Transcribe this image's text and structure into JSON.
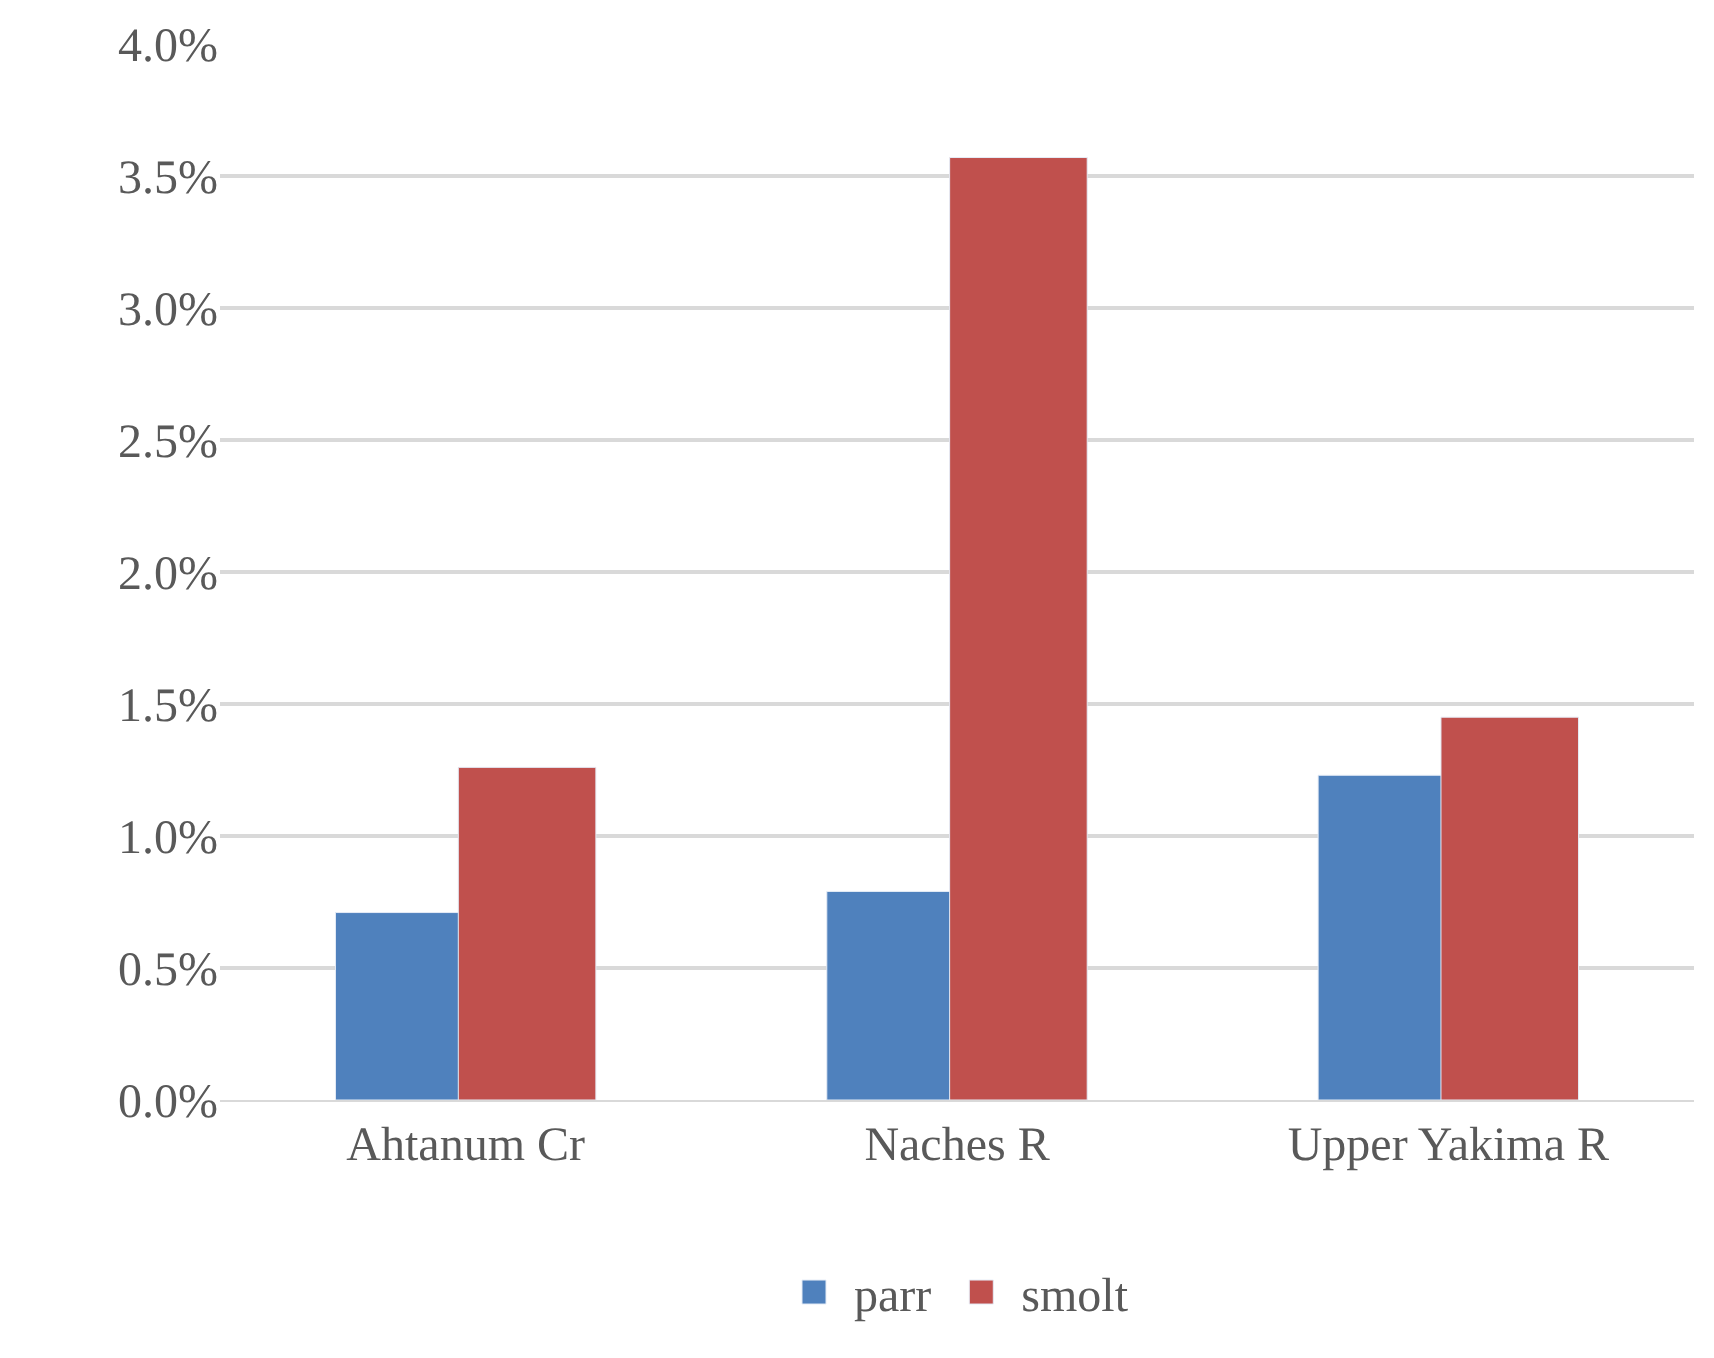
{
  "chart_data": {
    "type": "bar",
    "categories": [
      "Ahtanum Cr",
      "Naches R",
      "Upper Yakima R"
    ],
    "series": [
      {
        "name": "parr",
        "color": "#4f81bd",
        "values": [
          0.71,
          0.79,
          1.23
        ]
      },
      {
        "name": "smolt",
        "color": "#c0504d",
        "values": [
          1.26,
          3.57,
          1.45
        ]
      }
    ],
    "ylim": [
      0,
      4
    ],
    "yticks": [
      {
        "value": 0,
        "label": "0.0%"
      },
      {
        "value": 0.5,
        "label": "0.5%"
      },
      {
        "value": 1,
        "label": "1.0%"
      },
      {
        "value": 1.5,
        "label": "1.5%"
      },
      {
        "value": 2,
        "label": "2.0%"
      },
      {
        "value": 2.5,
        "label": "2.5%"
      },
      {
        "value": 3,
        "label": "3.0%"
      },
      {
        "value": 3.5,
        "label": "3.5%"
      },
      {
        "value": 4,
        "label": "4.0%"
      }
    ],
    "grid": "y",
    "legend": "bottom"
  }
}
